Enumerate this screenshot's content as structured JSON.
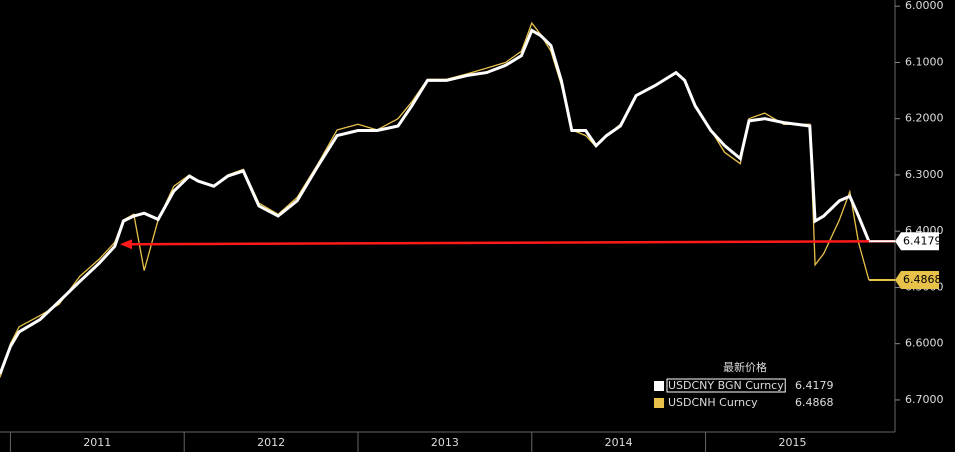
{
  "chart_data": {
    "type": "line",
    "legend_title": "最新价格",
    "y_inverted": true,
    "xlim": [
      2010.94,
      2016.09
    ],
    "xticks": [
      2011,
      2012,
      2013,
      2014,
      2015
    ],
    "ylim": [
      5.989,
      6.757
    ],
    "yticks": [
      {
        "value": 6.0,
        "label": "6.0000"
      },
      {
        "value": 6.1,
        "label": "6.1000"
      },
      {
        "value": 6.2,
        "label": "6.2000"
      },
      {
        "value": 6.3,
        "label": "6.3000"
      },
      {
        "value": 6.4,
        "label": "6.4000"
      },
      {
        "value": 6.5,
        "label": "6.5000"
      },
      {
        "value": 6.6,
        "label": "6.6000"
      },
      {
        "value": 6.7,
        "label": "6.7000"
      }
    ],
    "x": [
      2010.94,
      2011.0,
      2011.05,
      2011.17,
      2011.28,
      2011.4,
      2011.51,
      2011.6,
      2011.65,
      2011.71,
      2011.77,
      2011.85,
      2011.94,
      2012.03,
      2012.08,
      2012.17,
      2012.25,
      2012.34,
      2012.43,
      2012.54,
      2012.65,
      2012.77,
      2012.88,
      2013.0,
      2013.11,
      2013.23,
      2013.31,
      2013.4,
      2013.51,
      2013.63,
      2013.74,
      2013.85,
      2013.94,
      2014.0,
      2014.05,
      2014.11,
      2014.17,
      2014.23,
      2014.31,
      2014.37,
      2014.43,
      2014.51,
      2014.6,
      2014.71,
      2014.83,
      2014.88,
      2014.94,
      2015.03,
      2015.11,
      2015.2,
      2015.25,
      2015.34,
      2015.45,
      2015.6,
      2015.63,
      2015.68,
      2015.77,
      2015.83,
      2015.88,
      2015.94
    ],
    "series": [
      {
        "name": "USDCNY BGN Curncy",
        "color": "#ffffff",
        "values": [
          6.654,
          6.605,
          6.579,
          6.557,
          6.525,
          6.489,
          6.457,
          6.427,
          6.382,
          6.373,
          6.368,
          6.379,
          6.329,
          6.302,
          6.311,
          6.32,
          6.302,
          6.293,
          6.355,
          6.373,
          6.346,
          6.284,
          6.23,
          6.221,
          6.221,
          6.213,
          6.177,
          6.132,
          6.132,
          6.123,
          6.118,
          6.105,
          6.088,
          6.043,
          6.052,
          6.07,
          6.132,
          6.221,
          6.221,
          6.248,
          6.23,
          6.213,
          6.159,
          6.141,
          6.118,
          6.132,
          6.177,
          6.221,
          6.248,
          6.271,
          6.204,
          6.2,
          6.207,
          6.213,
          6.382,
          6.373,
          6.346,
          6.338,
          6.373,
          6.4179
        ]
      },
      {
        "name": "USDCNH Curncy",
        "color": "#e8c14a",
        "values": [
          6.66,
          6.6,
          6.57,
          6.55,
          6.53,
          6.48,
          6.45,
          6.42,
          6.38,
          6.37,
          6.47,
          6.38,
          6.32,
          6.3,
          6.31,
          6.32,
          6.3,
          6.29,
          6.35,
          6.37,
          6.34,
          6.28,
          6.22,
          6.21,
          6.22,
          6.2,
          6.17,
          6.13,
          6.13,
          6.12,
          6.11,
          6.1,
          6.08,
          6.03,
          6.05,
          6.08,
          6.14,
          6.22,
          6.23,
          6.25,
          6.23,
          6.21,
          6.16,
          6.14,
          6.12,
          6.13,
          6.18,
          6.22,
          6.26,
          6.28,
          6.2,
          6.19,
          6.21,
          6.21,
          6.46,
          6.44,
          6.38,
          6.33,
          6.42,
          6.4868
        ]
      }
    ]
  }
}
